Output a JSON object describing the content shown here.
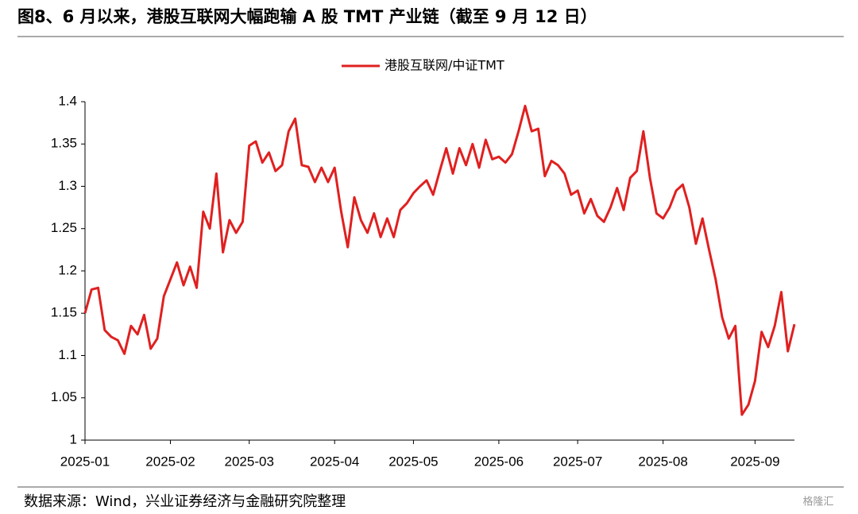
{
  "chart_data": {
    "type": "line",
    "title": "图8、6 月以来，港股互联网大幅跑输 A 股 TMT 产业链（截至 9 月 12 日）",
    "source": "数据来源：Wind，兴业证券经济与金融研究院整理",
    "watermark": "格隆汇",
    "categories": [
      "2025-01",
      null,
      null,
      null,
      null,
      null,
      null,
      null,
      null,
      null,
      null,
      null,
      null,
      "2025-02",
      null,
      null,
      null,
      null,
      null,
      null,
      null,
      null,
      null,
      null,
      null,
      "2025-03",
      null,
      null,
      null,
      null,
      null,
      null,
      null,
      null,
      null,
      null,
      null,
      null,
      "2025-04",
      null,
      null,
      null,
      null,
      null,
      null,
      null,
      null,
      null,
      null,
      null,
      "2025-05",
      null,
      null,
      null,
      null,
      null,
      null,
      null,
      null,
      null,
      null,
      null,
      null,
      "2025-06",
      null,
      null,
      null,
      null,
      null,
      null,
      null,
      null,
      null,
      null,
      null,
      "2025-07",
      null,
      null,
      null,
      null,
      null,
      null,
      null,
      null,
      null,
      null,
      null,
      null,
      "2025-08",
      null,
      null,
      null,
      null,
      null,
      null,
      null,
      null,
      null,
      null,
      null,
      null,
      null,
      "2025-09",
      null,
      null,
      null,
      null,
      null,
      null
    ],
    "series": [
      {
        "name": "港股互联网/中证TMT",
        "color": "#e02020",
        "values": [
          1.15,
          1.178,
          1.18,
          1.13,
          1.122,
          1.118,
          1.102,
          1.135,
          1.125,
          1.148,
          1.108,
          1.12,
          1.17,
          1.19,
          1.21,
          1.183,
          1.205,
          1.18,
          1.27,
          1.25,
          1.315,
          1.222,
          1.26,
          1.245,
          1.258,
          1.348,
          1.353,
          1.328,
          1.34,
          1.318,
          1.325,
          1.365,
          1.38,
          1.325,
          1.323,
          1.305,
          1.322,
          1.305,
          1.322,
          1.27,
          1.228,
          1.287,
          1.26,
          1.245,
          1.268,
          1.24,
          1.262,
          1.24,
          1.272,
          1.28,
          1.292,
          1.3,
          1.307,
          1.29,
          1.318,
          1.345,
          1.315,
          1.345,
          1.325,
          1.35,
          1.322,
          1.355,
          1.332,
          1.335,
          1.328,
          1.338,
          1.365,
          1.395,
          1.365,
          1.368,
          1.312,
          1.33,
          1.325,
          1.315,
          1.29,
          1.295,
          1.268,
          1.285,
          1.265,
          1.258,
          1.275,
          1.298,
          1.272,
          1.31,
          1.318,
          1.365,
          1.31,
          1.268,
          1.262,
          1.275,
          1.295,
          1.302,
          1.275,
          1.232,
          1.262,
          1.225,
          1.19,
          1.145,
          1.12,
          1.135,
          1.03,
          1.042,
          1.07,
          1.128,
          1.11,
          1.135,
          1.175,
          1.105,
          1.137
        ]
      }
    ],
    "ylim": [
      1,
      1.4
    ],
    "yticks": [
      1,
      1.05,
      1.1,
      1.15,
      1.2,
      1.25,
      1.3,
      1.35,
      1.4
    ],
    "grid": false
  }
}
